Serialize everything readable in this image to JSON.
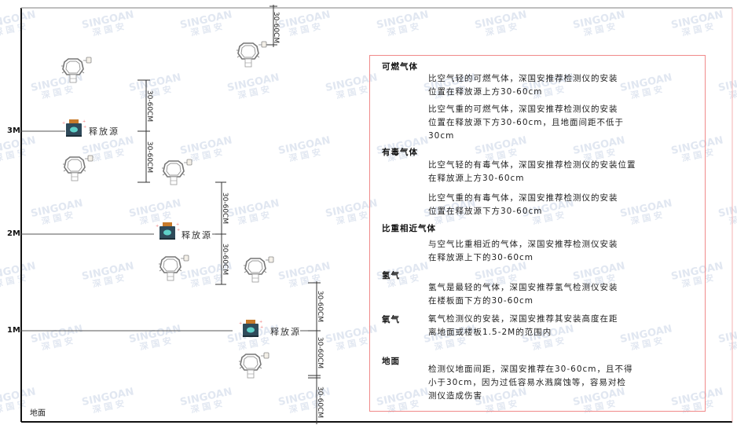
{
  "watermark": {
    "brand": "SINGOAN",
    "cn": "深国安"
  },
  "levels": [
    "3M",
    "2M",
    "1M"
  ],
  "ground_label": "地面",
  "source_label": "释放源",
  "dimension_label": "30-60CM",
  "notes": {
    "flammable": {
      "title": "可燃气体",
      "lighter": "比空气轻的可燃气体，深国安推荐检测仪的安装\n位置在释放源上方30-60cm",
      "heavier": "比空气重的可燃气体，深国安推荐检测仪的安装\n位置在释放源下方30-60cm，且地面间距不低于\n30cm"
    },
    "toxic": {
      "title": "有毒气体",
      "lighter": "比空气轻的有毒气体，深国安推荐检测仪的安装位置\n在释放源上方30-60cm",
      "heavier": "比空气重的有毒气体，深国安推荐检测仪的安装\n位置在释放源下方30-60cm"
    },
    "similar": {
      "title": "比重相近气体",
      "text": "与空气比重相近的气体，深国安推荐检测仪安装\n在释放源上下的30-60cm"
    },
    "hydrogen": {
      "title": "氢气",
      "text": "氢气是最轻的气体，深国安推荐氢气检测仪安装\n在楼板面下方的30-60cm"
    },
    "oxygen": {
      "title": "氧气",
      "text": "氧气检测仪的安装，深国安推荐其安装高度在距\n离地面或楼板1.5-2M的范围内"
    },
    "ground": {
      "title": "地面",
      "text": "检测仪地面间距，深国安推荐在30-60cm，且不得\n小于30cm，因为过低容易水溅腐蚀等，容易对检\n测仪造成伤害"
    }
  },
  "colors": {
    "frame": "#111111",
    "note_border": "#f08a8a",
    "source_body": "#2f4a5a",
    "source_face": "#5fd0c8",
    "source_cap": "#c87a2a"
  }
}
